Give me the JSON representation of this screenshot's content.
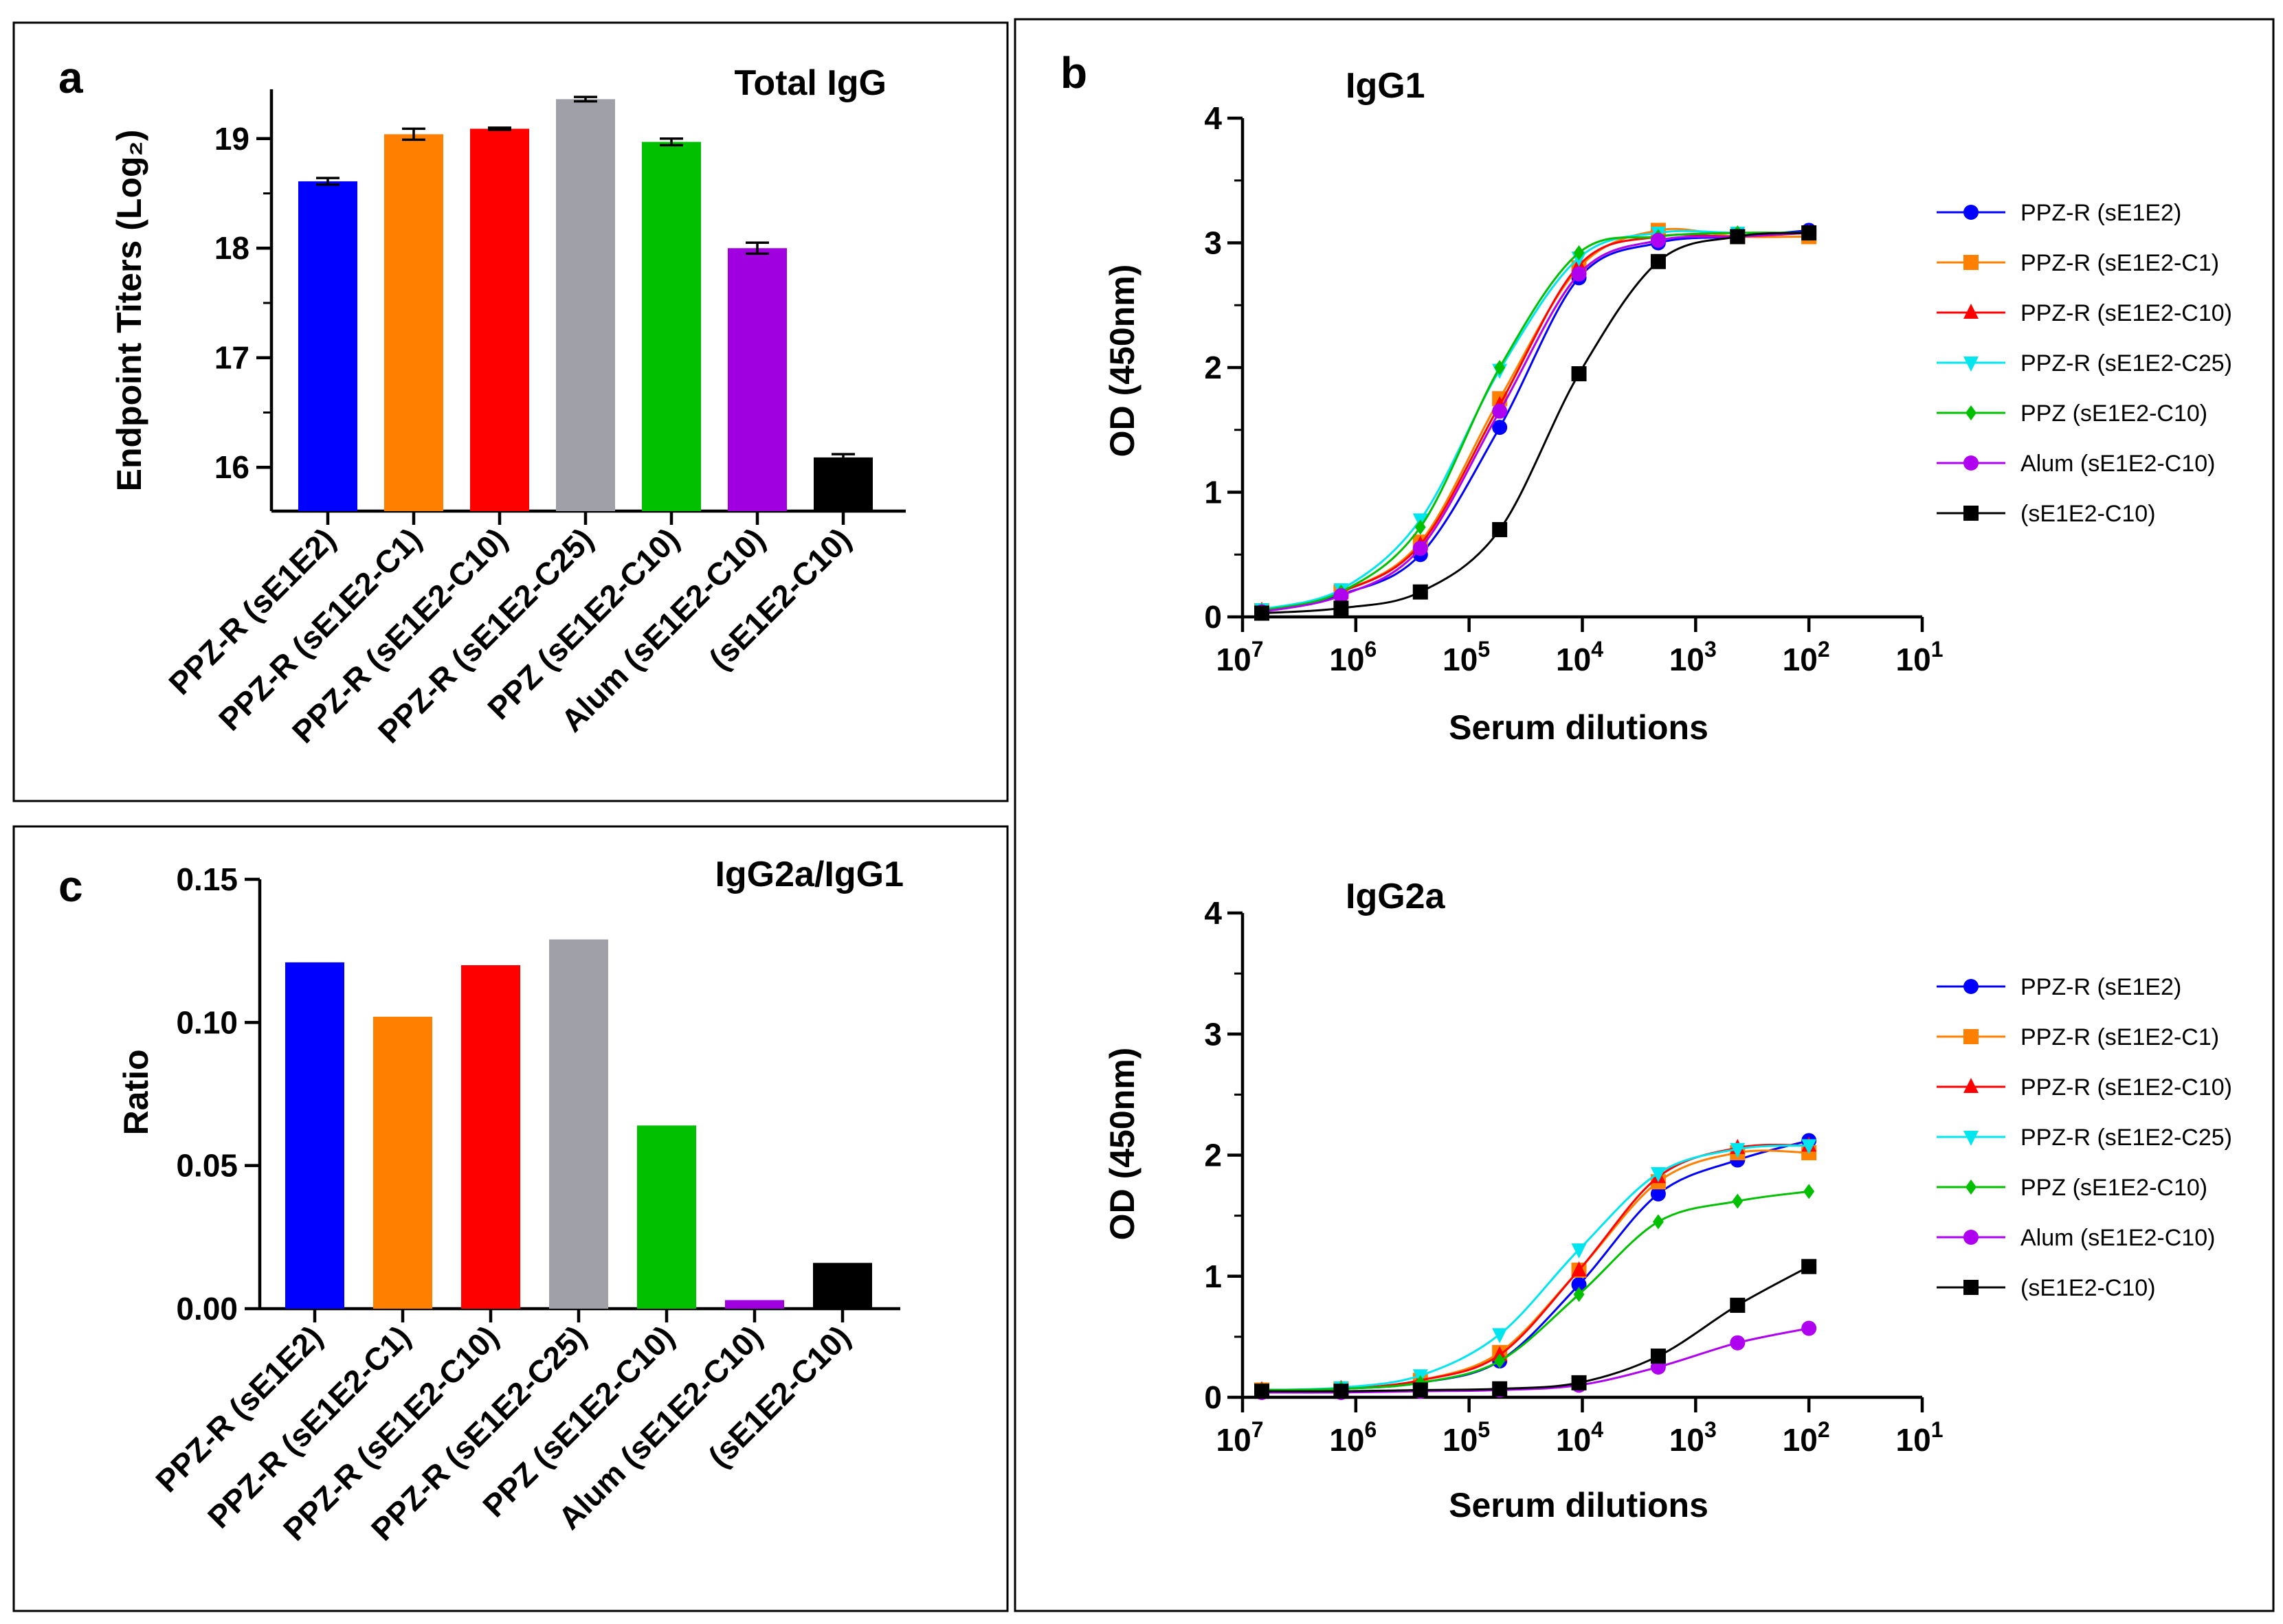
{
  "panels": {
    "a": {
      "letter": "a",
      "chart_data": {
        "type": "bar",
        "title": "Total IgG",
        "ylabel": "Endpoint Titers (Log₂)",
        "xlabel": "",
        "ylim": [
          15.6,
          19.45
        ],
        "yticks": [
          16,
          17,
          18,
          19
        ],
        "categories": [
          "PPZ-R (sE1E2)",
          "PPZ-R (sE1E2-C1)",
          "PPZ-R (sE1E2-C10)",
          "PPZ-R (sE1E2-C25)",
          "PPZ (sE1E2-C10)",
          "Alum (sE1E2-C10)",
          "(sE1E2-C10)"
        ],
        "values": [
          18.61,
          19.04,
          19.09,
          19.36,
          18.97,
          18.0,
          16.09
        ],
        "errors": [
          0.03,
          0.05,
          0.01,
          0.02,
          0.03,
          0.05,
          0.03
        ],
        "colors": [
          "#0000ff",
          "#ff8000",
          "#ff0000",
          "#a0a0a8",
          "#00c000",
          "#a000e0",
          "#000000"
        ]
      }
    },
    "c": {
      "letter": "c",
      "chart_data": {
        "type": "bar",
        "title": "IgG2a/IgG1",
        "ylabel": "Ratio",
        "xlabel": "",
        "ylim": [
          0,
          0.15
        ],
        "yticks": [
          0.0,
          0.05,
          0.1,
          0.15
        ],
        "ytick_labels": [
          "0.00",
          "0.05",
          "0.10",
          "0.15"
        ],
        "categories": [
          "PPZ-R (sE1E2)",
          "PPZ-R (sE1E2-C1)",
          "PPZ-R (sE1E2-C10)",
          "PPZ-R (sE1E2-C25)",
          "PPZ (sE1E2-C10)",
          "Alum (sE1E2-C10)",
          "(sE1E2-C10)"
        ],
        "values": [
          0.121,
          0.102,
          0.12,
          0.129,
          0.064,
          0.003,
          0.016
        ],
        "colors": [
          "#0000ff",
          "#ff8000",
          "#ff0000",
          "#a0a0a8",
          "#00c000",
          "#a000e0",
          "#000000"
        ]
      }
    },
    "b": {
      "letter": "b",
      "chart_data": [
        {
          "type": "line",
          "title": "IgG1",
          "xlabel": "Serum dilutions",
          "ylabel": "OD (450nm)",
          "xscale": "log-reversed",
          "xlim": [
            7,
            1
          ],
          "xticks": [
            7,
            6,
            5,
            4,
            3,
            2,
            1
          ],
          "ylim": [
            0,
            4
          ],
          "yticks": [
            0,
            1,
            2,
            3,
            4
          ],
          "x_log10_dilution": [
            6.83,
            6.13,
            5.43,
            4.73,
            4.03,
            3.33,
            2.63,
            2.0
          ],
          "series": [
            {
              "name": "PPZ-R (sE1E2)",
              "color": "#0000ff",
              "marker": "circle",
              "values": [
                0.05,
                0.18,
                0.5,
                1.52,
                2.72,
                3.0,
                3.05,
                3.1
              ]
            },
            {
              "name": "PPZ-R (sE1E2-C1)",
              "color": "#ff8000",
              "marker": "square",
              "values": [
                0.05,
                0.2,
                0.6,
                1.75,
                2.8,
                3.1,
                3.05,
                3.05
              ]
            },
            {
              "name": "PPZ-R (sE1E2-C10)",
              "color": "#ff0000",
              "marker": "triangle-up",
              "values": [
                0.05,
                0.2,
                0.58,
                1.7,
                2.82,
                3.05,
                3.05,
                3.08
              ]
            },
            {
              "name": "PPZ-R (sE1E2-C25)",
              "color": "#00e5ee",
              "marker": "triangle-down",
              "values": [
                0.06,
                0.22,
                0.78,
                1.98,
                2.88,
                3.08,
                3.08,
                3.08
              ]
            },
            {
              "name": "PPZ (sE1E2-C10)",
              "color": "#00c000",
              "marker": "diamond",
              "values": [
                0.05,
                0.2,
                0.72,
                2.0,
                2.92,
                3.05,
                3.08,
                3.08
              ]
            },
            {
              "name": "Alum (sE1E2-C10)",
              "color": "#b000f0",
              "marker": "circle",
              "values": [
                0.04,
                0.17,
                0.55,
                1.65,
                2.75,
                3.02,
                3.05,
                3.08
              ]
            },
            {
              "name": "(sE1E2-C10)",
              "color": "#000000",
              "marker": "square",
              "values": [
                0.03,
                0.07,
                0.2,
                0.7,
                1.95,
                2.85,
                3.05,
                3.08
              ]
            }
          ]
        },
        {
          "type": "line",
          "title": "IgG2a",
          "xlabel": "Serum dilutions",
          "ylabel": "OD (450nm)",
          "xscale": "log-reversed",
          "xlim": [
            7,
            1
          ],
          "xticks": [
            7,
            6,
            5,
            4,
            3,
            2,
            1
          ],
          "ylim": [
            0,
            4
          ],
          "yticks": [
            0,
            1,
            2,
            3,
            4
          ],
          "x_log10_dilution": [
            6.83,
            6.13,
            5.43,
            4.73,
            4.03,
            3.33,
            2.63,
            2.0
          ],
          "series": [
            {
              "name": "PPZ-R (sE1E2)",
              "color": "#0000ff",
              "marker": "circle",
              "values": [
                0.06,
                0.07,
                0.12,
                0.3,
                0.93,
                1.68,
                1.96,
                2.12
              ]
            },
            {
              "name": "PPZ-R (sE1E2-C1)",
              "color": "#ff8000",
              "marker": "square",
              "values": [
                0.06,
                0.07,
                0.14,
                0.37,
                1.05,
                1.78,
                2.02,
                2.02
              ]
            },
            {
              "name": "PPZ-R (sE1E2-C10)",
              "color": "#ff0000",
              "marker": "triangle-up",
              "values": [
                0.06,
                0.07,
                0.14,
                0.35,
                1.05,
                1.82,
                2.06,
                2.08
              ]
            },
            {
              "name": "PPZ-R (sE1E2-C25)",
              "color": "#00e5ee",
              "marker": "triangle-down",
              "values": [
                0.06,
                0.08,
                0.18,
                0.52,
                1.22,
                1.85,
                2.05,
                2.08
              ]
            },
            {
              "name": "PPZ (sE1E2-C10)",
              "color": "#00c000",
              "marker": "diamond",
              "values": [
                0.06,
                0.07,
                0.12,
                0.3,
                0.85,
                1.45,
                1.62,
                1.7
              ]
            },
            {
              "name": "Alum (sE1E2-C10)",
              "color": "#b000f0",
              "marker": "circle",
              "values": [
                0.04,
                0.04,
                0.05,
                0.06,
                0.1,
                0.25,
                0.45,
                0.57
              ]
            },
            {
              "name": "(sE1E2-C10)",
              "color": "#000000",
              "marker": "square",
              "values": [
                0.05,
                0.05,
                0.06,
                0.07,
                0.12,
                0.34,
                0.76,
                1.08
              ]
            }
          ]
        }
      ]
    }
  }
}
